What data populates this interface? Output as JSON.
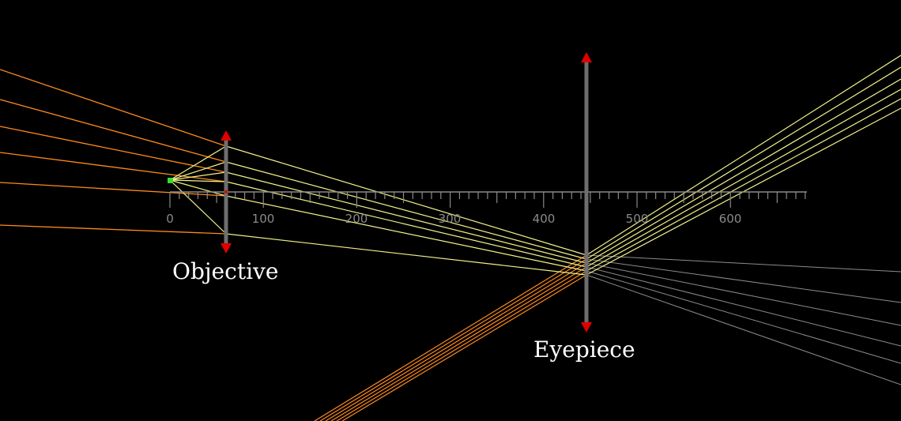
{
  "colors": {
    "background": "#000000",
    "ruler": "#8a8a8a",
    "lens": "#6e6e6e",
    "lens_arrow": "#e00000",
    "object_point": "#33dd33",
    "ray_incoming": "#ff8a1c",
    "ray_inside": "#f2f28a",
    "ray_virtual": "#8c8c8c"
  },
  "labels": {
    "objective": "Objective",
    "eyepiece": "Eyepiece"
  },
  "ruler": {
    "tick_labels": [
      "0",
      "100",
      "200",
      "300",
      "400",
      "500",
      "600"
    ]
  },
  "icons": {
    "objective_arrows": "double-headed-arrow-icon",
    "eyepiece_arrows": "double-headed-arrow-icon",
    "object": "green-dot-icon"
  }
}
